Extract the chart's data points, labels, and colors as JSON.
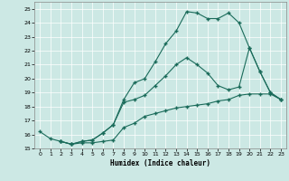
{
  "xlabel": "Humidex (Indice chaleur)",
  "xlim": [
    -0.5,
    23.5
  ],
  "ylim": [
    15.0,
    25.5
  ],
  "yticks": [
    15,
    16,
    17,
    18,
    19,
    20,
    21,
    22,
    23,
    24,
    25
  ],
  "xticks": [
    0,
    1,
    2,
    3,
    4,
    5,
    6,
    7,
    8,
    9,
    10,
    11,
    12,
    13,
    14,
    15,
    16,
    17,
    18,
    19,
    20,
    21,
    22,
    23
  ],
  "bg_color": "#cce8e4",
  "grid_color": "#b0d8d4",
  "line_color": "#1a6b5a",
  "lA_x": [
    0,
    1,
    2,
    3,
    4,
    5,
    6,
    7,
    8,
    9,
    10,
    11,
    12,
    13,
    14,
    15,
    16,
    17,
    18,
    19,
    20,
    21,
    22,
    23
  ],
  "lA_y": [
    16.2,
    15.7,
    15.5,
    15.3,
    15.4,
    15.4,
    15.5,
    15.6,
    16.5,
    16.8,
    17.3,
    17.5,
    17.7,
    17.9,
    18.0,
    18.1,
    18.2,
    18.4,
    18.5,
    18.8,
    18.9,
    18.9,
    18.9,
    18.5
  ],
  "lB_x": [
    2,
    3,
    4,
    5,
    6,
    7,
    8,
    9,
    10,
    11,
    12,
    13,
    14,
    15,
    16,
    17,
    18,
    19,
    20,
    21,
    22,
    23
  ],
  "lB_y": [
    15.5,
    15.3,
    15.5,
    15.6,
    16.1,
    16.7,
    18.5,
    19.7,
    20.0,
    21.2,
    22.5,
    23.4,
    24.8,
    24.7,
    24.3,
    24.3,
    24.7,
    24.0,
    22.2,
    20.5,
    19.0,
    18.5
  ],
  "lC_x": [
    2,
    3,
    4,
    5,
    6,
    7,
    8,
    9,
    10,
    11,
    12,
    13,
    14,
    15,
    16,
    17,
    18,
    19,
    20,
    21,
    22,
    23
  ],
  "lC_y": [
    15.5,
    15.3,
    15.5,
    15.6,
    16.1,
    16.7,
    18.3,
    18.5,
    18.8,
    19.5,
    20.2,
    21.0,
    21.5,
    21.0,
    20.4,
    19.5,
    19.2,
    19.4,
    22.2,
    20.5,
    19.0,
    18.5
  ]
}
